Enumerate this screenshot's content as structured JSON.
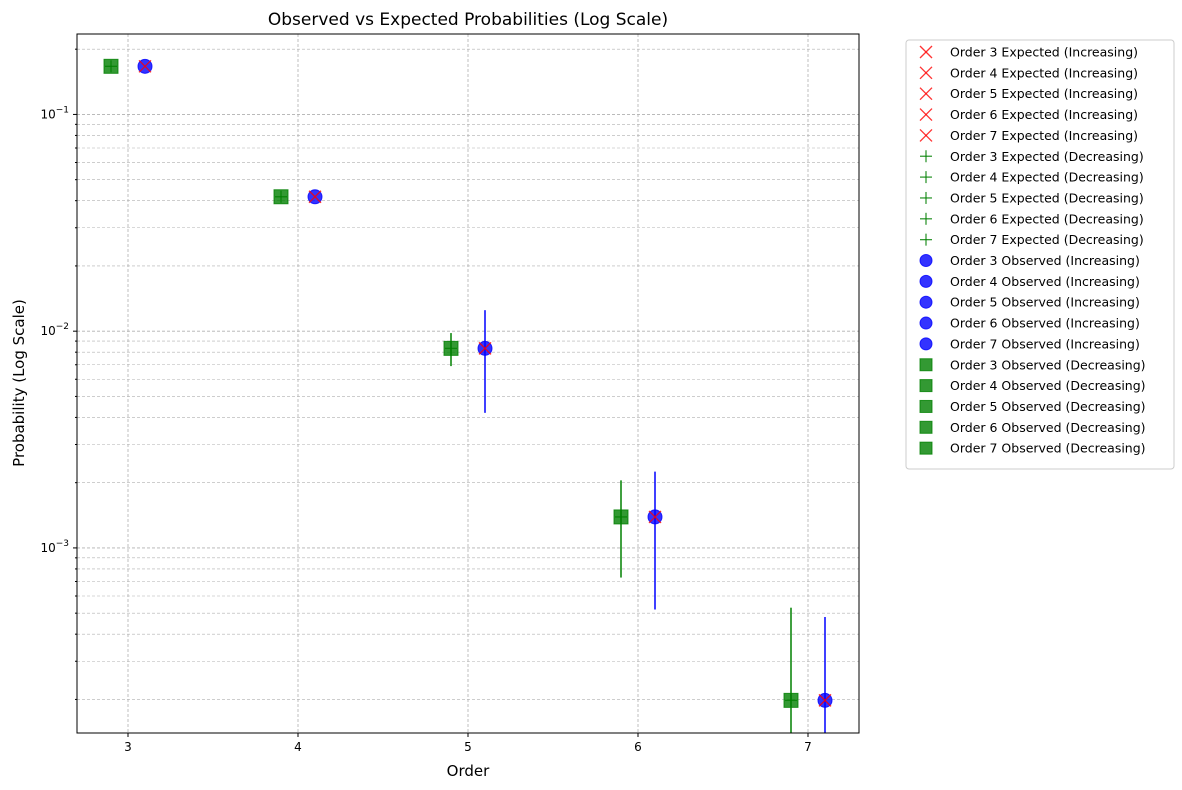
{
  "chart_data": {
    "type": "scatter",
    "title": "Observed vs Expected Probabilities (Log Scale)",
    "xlabel": "Order",
    "ylabel": "Probability (Log Scale)",
    "x_scale": "linear",
    "y_scale": "log",
    "xlim": [
      2.7,
      7.3
    ],
    "ylim": [
      0.00014,
      0.235
    ],
    "x_ticks": [
      3,
      4,
      5,
      6,
      7
    ],
    "x_tick_labels": [
      "3",
      "4",
      "5",
      "6",
      "7"
    ],
    "y_ticks": [
      0.001,
      0.01,
      0.1
    ],
    "y_tick_labels": [
      {
        "base": "10",
        "exp": "−3"
      },
      {
        "base": "10",
        "exp": "−2"
      },
      {
        "base": "10",
        "exp": "−1"
      }
    ],
    "grid": true,
    "legend_position": "outside-right",
    "colors": {
      "expected_increasing": "#ff0000",
      "expected_decreasing": "#008000",
      "observed_increasing": "#0000ff",
      "observed_decreasing": "#008000"
    },
    "series": [
      {
        "name": "Order 3 Expected (Increasing)",
        "marker": "x",
        "color": "#ff0000",
        "x": [
          3.1
        ],
        "y": [
          0.1667
        ]
      },
      {
        "name": "Order 4 Expected (Increasing)",
        "marker": "x",
        "color": "#ff0000",
        "x": [
          4.1
        ],
        "y": [
          0.0417
        ]
      },
      {
        "name": "Order 5 Expected (Increasing)",
        "marker": "x",
        "color": "#ff0000",
        "x": [
          5.1
        ],
        "y": [
          0.00833
        ]
      },
      {
        "name": "Order 6 Expected (Increasing)",
        "marker": "x",
        "color": "#ff0000",
        "x": [
          6.1
        ],
        "y": [
          0.00139
        ]
      },
      {
        "name": "Order 7 Expected (Increasing)",
        "marker": "x",
        "color": "#ff0000",
        "x": [
          7.1
        ],
        "y": [
          0.000198
        ]
      },
      {
        "name": "Order 3 Expected (Decreasing)",
        "marker": "+",
        "color": "#008000",
        "x": [
          2.9
        ],
        "y": [
          0.1667
        ]
      },
      {
        "name": "Order 4 Expected (Decreasing)",
        "marker": "+",
        "color": "#008000",
        "x": [
          3.9
        ],
        "y": [
          0.0417
        ]
      },
      {
        "name": "Order 5 Expected (Decreasing)",
        "marker": "+",
        "color": "#008000",
        "x": [
          4.9
        ],
        "y": [
          0.00833
        ]
      },
      {
        "name": "Order 6 Expected (Decreasing)",
        "marker": "+",
        "color": "#008000",
        "x": [
          5.9
        ],
        "y": [
          0.00139
        ]
      },
      {
        "name": "Order 7 Expected (Decreasing)",
        "marker": "+",
        "color": "#008000",
        "x": [
          6.9
        ],
        "y": [
          0.000198
        ]
      },
      {
        "name": "Order 3 Observed (Increasing)",
        "marker": "o",
        "color": "#0000ff",
        "x": [
          3.1
        ],
        "y": [
          0.1667
        ],
        "err_low": [
          0.1667
        ],
        "err_high": [
          0.1667
        ]
      },
      {
        "name": "Order 4 Observed (Increasing)",
        "marker": "o",
        "color": "#0000ff",
        "x": [
          4.1
        ],
        "y": [
          0.0417
        ],
        "err_low": [
          0.0417
        ],
        "err_high": [
          0.0417
        ]
      },
      {
        "name": "Order 5 Observed (Increasing)",
        "marker": "o",
        "color": "#0000ff",
        "x": [
          5.1
        ],
        "y": [
          0.00833
        ],
        "err_low": [
          0.0042
        ],
        "err_high": [
          0.0125
        ]
      },
      {
        "name": "Order 6 Observed (Increasing)",
        "marker": "o",
        "color": "#0000ff",
        "x": [
          6.1
        ],
        "y": [
          0.00139
        ],
        "err_low": [
          0.00052
        ],
        "err_high": [
          0.00225
        ]
      },
      {
        "name": "Order 7 Observed (Increasing)",
        "marker": "o",
        "color": "#0000ff",
        "x": [
          7.1
        ],
        "y": [
          0.000198
        ],
        "err_low": [
          0.00014
        ],
        "err_high": [
          0.00048
        ]
      },
      {
        "name": "Order 3 Observed (Decreasing)",
        "marker": "s",
        "color": "#008000",
        "x": [
          2.9
        ],
        "y": [
          0.1667
        ],
        "err_low": [
          0.1667
        ],
        "err_high": [
          0.1667
        ]
      },
      {
        "name": "Order 4 Observed (Decreasing)",
        "marker": "s",
        "color": "#008000",
        "x": [
          3.9
        ],
        "y": [
          0.0417
        ],
        "err_low": [
          0.0417
        ],
        "err_high": [
          0.0417
        ]
      },
      {
        "name": "Order 5 Observed (Decreasing)",
        "marker": "s",
        "color": "#008000",
        "x": [
          4.9
        ],
        "y": [
          0.00833
        ],
        "err_low": [
          0.0069
        ],
        "err_high": [
          0.0098
        ]
      },
      {
        "name": "Order 6 Observed (Decreasing)",
        "marker": "s",
        "color": "#008000",
        "x": [
          5.9
        ],
        "y": [
          0.00139
        ],
        "err_low": [
          0.00073
        ],
        "err_high": [
          0.00205
        ]
      },
      {
        "name": "Order 7 Observed (Decreasing)",
        "marker": "s",
        "color": "#008000",
        "x": [
          6.9
        ],
        "y": [
          0.000198
        ],
        "err_low": [
          0.00014
        ],
        "err_high": [
          0.00053
        ]
      }
    ]
  }
}
